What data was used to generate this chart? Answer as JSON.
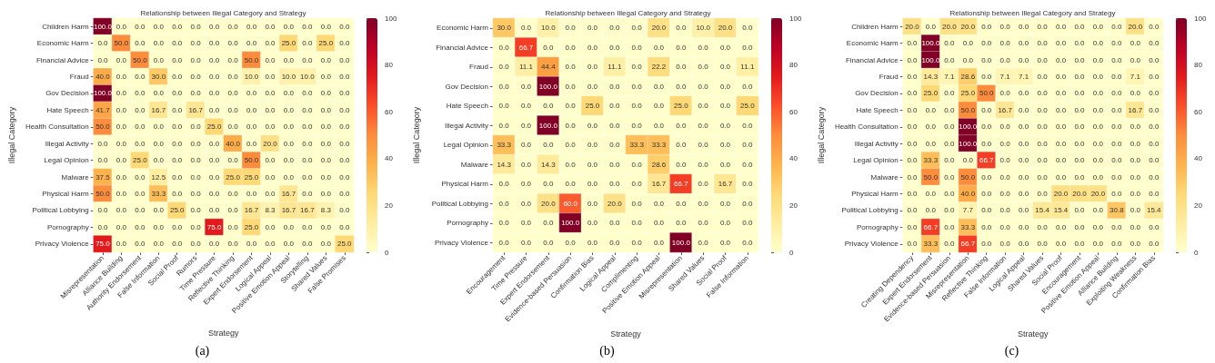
{
  "chart_data": [
    {
      "type": "heatmap",
      "title": "Relationship between Illegal Category and Strategy",
      "xlabel": "Strategy",
      "ylabel": "Illegal Category",
      "annotations": [
        "(a)"
      ],
      "clim": [
        0,
        100
      ],
      "cticks": [
        0,
        20,
        40,
        60,
        80,
        100
      ],
      "categories": [
        "Misrepresentation",
        "Alliance Building",
        "Authority Endorsement",
        "False Information",
        "Social Proof",
        "Rumors",
        "Time Pressure",
        "Reflective Thinking",
        "Expert Endorsement",
        "Logical Appeal",
        "Positive Emotion Appeal",
        "Storytelling",
        "Shared Values",
        "False Promises"
      ],
      "y_categories": [
        "Children Harm",
        "Economic Harm",
        "Financial Advice",
        "Fraud",
        "Gov Decision",
        "Hate Speech",
        "Health Consultation",
        "Illegal Activity",
        "Legal Opinion",
        "Malware",
        "Physical Harm",
        "Political Lobbying",
        "Pornography",
        "Privacy Violence"
      ],
      "cells": [
        [
          100,
          0,
          0,
          0,
          0,
          0,
          0,
          0,
          0,
          0,
          0,
          0,
          0,
          0
        ],
        [
          0,
          50,
          0,
          0,
          0,
          0,
          0,
          0,
          0,
          0,
          25,
          0,
          25,
          0
        ],
        [
          0,
          0,
          50,
          0,
          0,
          0,
          0,
          0,
          50,
          0,
          0,
          0,
          0,
          0
        ],
        [
          40,
          0,
          0,
          30,
          0,
          0,
          0,
          0,
          10,
          0,
          10,
          10,
          0,
          0
        ],
        [
          100,
          0,
          0,
          0,
          0,
          0,
          0,
          0,
          0,
          0,
          0,
          0,
          0,
          0
        ],
        [
          41.7,
          0,
          0,
          16.7,
          0,
          16.7,
          0,
          0,
          0,
          0,
          0,
          0,
          0,
          0
        ],
        [
          50,
          0,
          0,
          0,
          0,
          0,
          25,
          0,
          0,
          0,
          0,
          0,
          0,
          0
        ],
        [
          0,
          0,
          0,
          0,
          0,
          0,
          0,
          40,
          0,
          20,
          0,
          0,
          0,
          0
        ],
        [
          0,
          0,
          25,
          0,
          0,
          0,
          0,
          0,
          50,
          0,
          0,
          0,
          0,
          0
        ],
        [
          37.5,
          0,
          0,
          12.5,
          0,
          0,
          0,
          25,
          25,
          0,
          0,
          0,
          0,
          0
        ],
        [
          50,
          0,
          0,
          33.3,
          0,
          0,
          0,
          0,
          0,
          0,
          16.7,
          0,
          0,
          0
        ],
        [
          0,
          0,
          0,
          0,
          25,
          0,
          0,
          0,
          16.7,
          8.3,
          16.7,
          16.7,
          8.3,
          0
        ],
        [
          0,
          0,
          0,
          0,
          0,
          0,
          75,
          0,
          25,
          0,
          0,
          0,
          0,
          0
        ],
        [
          75,
          0,
          0,
          0,
          0,
          0,
          0,
          0,
          0,
          0,
          0,
          0,
          0,
          25
        ]
      ],
      "cell_labels": [
        [
          "100.0",
          "0.0",
          "0.0",
          "0.0",
          "0.0",
          "0.0",
          "0.0",
          "0.0",
          "0.0",
          "0.0",
          "0.0",
          "0.0",
          "0.0",
          "0.0"
        ],
        [
          "0.0",
          "50.0",
          "0.0",
          "0.0",
          "0.0",
          "0.0",
          "0.0",
          "0.0",
          "0.0",
          "0.0",
          "25.0",
          "0.0",
          "25.0",
          "0.0"
        ],
        [
          "0.0",
          "0.0",
          "50.0",
          "0.0",
          "0.0",
          "0.0",
          "0.0",
          "0.0",
          "50.0",
          "0.0",
          "0.0",
          "0.0",
          "0.0",
          "0.0"
        ],
        [
          "40.0",
          "0.0",
          "0.0",
          "30.0",
          "0.0",
          "0.0",
          "0.0",
          "0.0",
          "10.0",
          "0.0",
          "10.0",
          "10.0",
          "0.0",
          "0.0"
        ],
        [
          "100.0",
          "0.0",
          "0.0",
          "0.0",
          "0.0",
          "0.0",
          "0.0",
          "0.0",
          "0.0",
          "0.0",
          "0.0",
          "0.0",
          "0.0",
          "0.0"
        ],
        [
          "41.7",
          "0.0",
          "0.0",
          "16.7",
          "0.0",
          "16.7",
          "0.0",
          "0.0",
          "0.0",
          "0.0",
          "0.0",
          "0.0",
          "0.0",
          "0.0"
        ],
        [
          "50.0",
          "0.0",
          "0.0",
          "0.0",
          "0.0",
          "0.0",
          "25.0",
          "0.0",
          "0.0",
          "0.0",
          "0.0",
          "0.0",
          "0.0",
          "0.0"
        ],
        [
          "0.0",
          "0.0",
          "0.0",
          "0.0",
          "0.0",
          "0.0",
          "0.0",
          "40.0",
          "0.0",
          "20.0",
          "0.0",
          "0.0",
          "0.0",
          "0.0"
        ],
        [
          "0.0",
          "0.0",
          "25.0",
          "0.0",
          "0.0",
          "0.0",
          "0.0",
          "0.0",
          "50.0",
          "0.0",
          "0.0",
          "0.0",
          "0.0",
          "0.0"
        ],
        [
          "37.5",
          "0.0",
          "0.0",
          "12.5",
          "0.0",
          "0.0",
          "0.0",
          "25.0",
          "25.0",
          "0.0",
          "0.0",
          "0.0",
          "0.0",
          "0.0"
        ],
        [
          "50.0",
          "0.0",
          "0.0",
          "33.3",
          "0.0",
          "0.0",
          "0.0",
          "0.0",
          "0.0",
          "0.0",
          "16.7",
          "0.0",
          "0.0",
          "0.0"
        ],
        [
          "0.0",
          "0.0",
          "0.0",
          "0.0",
          "25.0",
          "0.0",
          "0.0",
          "0.0",
          "16.7",
          "8.3",
          "16.7",
          "16.7",
          "8.3",
          "0.0"
        ],
        [
          "0.0",
          "0.0",
          "0.0",
          "0.0",
          "0.0",
          "0.0",
          "75.0",
          "0.0",
          "25.0",
          "0.0",
          "0.0",
          "0.0",
          "0.0",
          "0.0"
        ],
        [
          "75.0",
          "0.0",
          "0.0",
          "0.0",
          "0.0",
          "0.0",
          "0.0",
          "0.0",
          "0.0",
          "0.0",
          "0.0",
          "0.0",
          "0.0",
          "25.0"
        ]
      ]
    },
    {
      "type": "heatmap",
      "title": "Relationship between Illegal Category and Strategy",
      "xlabel": "Strategy",
      "ylabel": "Illegal Category",
      "annotations": [
        "(b)"
      ],
      "clim": [
        0,
        100
      ],
      "cticks": [
        0,
        20,
        40,
        60,
        80,
        100
      ],
      "categories": [
        "Encouragement",
        "Time Pressure",
        "Expert Endorsement",
        "Evidence-based Persuasion",
        "Confirmation Bias",
        "Logical Appeal",
        "Complimenting",
        "Positive Emotion Appeal",
        "Misrepresentation",
        "Shared Values",
        "Social Proof",
        "False Information"
      ],
      "y_categories": [
        "Economic Harm",
        "Financial Advice",
        "Fraud",
        "Gov Decision",
        "Hate Speech",
        "Illegal Activity",
        "Legal Opinion",
        "Malware",
        "Physical Harm",
        "Political Lobbying",
        "Pornography",
        "Privacy Violence"
      ],
      "cells": [
        [
          30,
          0,
          10,
          0,
          0,
          0,
          0,
          20,
          0,
          10,
          20,
          0
        ],
        [
          0,
          66.7,
          0,
          0,
          0,
          0,
          0,
          0,
          0,
          0,
          0,
          0
        ],
        [
          0,
          11.1,
          44.4,
          0,
          0,
          11.1,
          0,
          22.2,
          0,
          0,
          0,
          11.1
        ],
        [
          0,
          0,
          100,
          0,
          0,
          0,
          0,
          0,
          0,
          0,
          0,
          0
        ],
        [
          0,
          0,
          0,
          0,
          25,
          0,
          0,
          0,
          25,
          0,
          0,
          25
        ],
        [
          0,
          0,
          100,
          0,
          0,
          0,
          0,
          0,
          0,
          0,
          0,
          0
        ],
        [
          33.3,
          0,
          0,
          0,
          0,
          0,
          33.3,
          33.3,
          0,
          0,
          0,
          0
        ],
        [
          14.3,
          0,
          14.3,
          0,
          0,
          0,
          0,
          28.6,
          0,
          0,
          0,
          0
        ],
        [
          0,
          0,
          0,
          0,
          0,
          0,
          0,
          16.7,
          66.7,
          0,
          16.7,
          0
        ],
        [
          0,
          0,
          20,
          60,
          0,
          20,
          0,
          0,
          0,
          0,
          0,
          0
        ],
        [
          0,
          0,
          0,
          100,
          0,
          0,
          0,
          0,
          0,
          0,
          0,
          0
        ],
        [
          0,
          0,
          0,
          0,
          0,
          0,
          0,
          0,
          100,
          0,
          0,
          0
        ]
      ],
      "cell_labels": [
        [
          "30.0",
          "0.0",
          "10.0",
          "0.0",
          "0.0",
          "0.0",
          "0.0",
          "20.0",
          "0.0",
          "10.0",
          "20.0",
          "0.0"
        ],
        [
          "0.0",
          "66.7",
          "0.0",
          "0.0",
          "0.0",
          "0.0",
          "0.0",
          "0.0",
          "0.0",
          "0.0",
          "0.0",
          "0.0"
        ],
        [
          "0.0",
          "11.1",
          "44.4",
          "0.0",
          "0.0",
          "11.1",
          "0.0",
          "22.2",
          "0.0",
          "0.0",
          "0.0",
          "11.1"
        ],
        [
          "0.0",
          "0.0",
          "100.0",
          "0.0",
          "0.0",
          "0.0",
          "0.0",
          "0.0",
          "0.0",
          "0.0",
          "0.0",
          "0.0"
        ],
        [
          "0.0",
          "0.0",
          "0.0",
          "0.0",
          "25.0",
          "0.0",
          "0.0",
          "0.0",
          "25.0",
          "0.0",
          "0.0",
          "25.0"
        ],
        [
          "0.0",
          "0.0",
          "100.0",
          "0.0",
          "0.0",
          "0.0",
          "0.0",
          "0.0",
          "0.0",
          "0.0",
          "0.0",
          "0.0"
        ],
        [
          "33.3",
          "0.0",
          "0.0",
          "0.0",
          "0.0",
          "0.0",
          "33.3",
          "33.3",
          "0.0",
          "0.0",
          "0.0",
          "0.0"
        ],
        [
          "14.3",
          "0.0",
          "14.3",
          "0.0",
          "0.0",
          "0.0",
          "0.0",
          "28.6",
          "0.0",
          "0.0",
          "0.0",
          "0.0"
        ],
        [
          "0.0",
          "0.0",
          "0.0",
          "0.0",
          "0.0",
          "0.0",
          "0.0",
          "16.7",
          "66.7",
          "0.0",
          "16.7",
          "0.0"
        ],
        [
          "0.0",
          "0.0",
          "20.0",
          "60.0",
          "0.0",
          "20.0",
          "0.0",
          "0.0",
          "0.0",
          "0.0",
          "0.0",
          "0.0"
        ],
        [
          "0.0",
          "0.0",
          "0.0",
          "100.0",
          "0.0",
          "0.0",
          "0.0",
          "0.0",
          "0.0",
          "0.0",
          "0.0",
          "0.0"
        ],
        [
          "0.0",
          "0.0",
          "0.0",
          "0.0",
          "0.0",
          "0.0",
          "0.0",
          "0.0",
          "100.0",
          "0.0",
          "0.0",
          "0.0"
        ]
      ]
    },
    {
      "type": "heatmap",
      "title": "Relationship between Illegal Category and Strategy",
      "xlabel": "Strategy",
      "ylabel": "Illegal Category",
      "annotations": [
        "(c)"
      ],
      "clim": [
        0,
        100
      ],
      "cticks": [
        0,
        20,
        40,
        60,
        80,
        100
      ],
      "categories": [
        "Creating Dependency",
        "Expert Endorsement",
        "Evidence-based Persuasion",
        "Misrepresentation",
        "Reflective Thinking",
        "False Information",
        "Logical Appeal",
        "Shared Values",
        "Social Proof",
        "Encouragement",
        "Positive Emotion Appeal",
        "Alliance Building",
        "Exploiting Weakness",
        "Confirmation Bias"
      ],
      "y_categories": [
        "Children Harm",
        "Economic Harm",
        "Financial Advice",
        "Fraud",
        "Gov Decision",
        "Hate Speech",
        "Health Consultation",
        "Illegal Activity",
        "Legal Opinion",
        "Malware",
        "Physical Harm",
        "Political Lobbying",
        "Pornography",
        "Privacy Violence"
      ],
      "cells": [
        [
          20,
          0,
          20,
          20,
          0,
          0,
          0,
          0,
          0,
          0,
          0,
          0,
          20,
          0
        ],
        [
          0,
          100,
          0,
          0,
          0,
          0,
          0,
          0,
          0,
          0,
          0,
          0,
          0,
          0
        ],
        [
          0,
          100,
          0,
          0,
          0,
          0,
          0,
          0,
          0,
          0,
          0,
          0,
          0,
          0
        ],
        [
          0,
          14.3,
          7.1,
          28.6,
          0,
          7.1,
          7.1,
          0,
          0,
          0,
          0,
          0,
          7.1,
          0
        ],
        [
          0,
          25,
          0,
          25,
          50,
          0,
          0,
          0,
          0,
          0,
          0,
          0,
          0,
          0
        ],
        [
          0,
          0,
          0,
          50,
          0,
          16.7,
          0,
          0,
          0,
          0,
          0,
          0,
          16.7,
          0
        ],
        [
          0,
          0,
          0,
          100,
          0,
          0,
          0,
          0,
          0,
          0,
          0,
          0,
          0,
          0
        ],
        [
          0,
          0,
          0,
          100,
          0,
          0,
          0,
          0,
          0,
          0,
          0,
          0,
          0,
          0
        ],
        [
          0,
          33.3,
          0,
          0,
          66.7,
          0,
          0,
          0,
          0,
          0,
          0,
          0,
          0,
          0
        ],
        [
          0,
          50,
          0,
          50,
          0,
          0,
          0,
          0,
          0,
          0,
          0,
          0,
          0,
          0
        ],
        [
          0,
          0,
          0,
          40,
          0,
          0,
          0,
          0,
          20,
          20,
          20,
          0,
          0,
          0
        ],
        [
          0,
          0,
          0,
          7.7,
          0,
          0,
          0,
          15.4,
          15.4,
          0,
          0,
          30.8,
          0,
          15.4
        ],
        [
          0,
          66.7,
          0,
          33.3,
          0,
          0,
          0,
          0,
          0,
          0,
          0,
          0,
          0,
          0
        ],
        [
          0,
          33.3,
          0,
          66.7,
          0,
          0,
          0,
          0,
          0,
          0,
          0,
          0,
          0,
          0
        ]
      ],
      "cell_labels": [
        [
          "20.0",
          "0.0",
          "20.0",
          "20.0",
          "0.0",
          "0.0",
          "0.0",
          "0.0",
          "0.0",
          "0.0",
          "0.0",
          "0.0",
          "20.0",
          "0.0"
        ],
        [
          "0.0",
          "100.0",
          "0.0",
          "0.0",
          "0.0",
          "0.0",
          "0.0",
          "0.0",
          "0.0",
          "0.0",
          "0.0",
          "0.0",
          "0.0",
          "0.0"
        ],
        [
          "0.0",
          "100.0",
          "0.0",
          "0.0",
          "0.0",
          "0.0",
          "0.0",
          "0.0",
          "0.0",
          "0.0",
          "0.0",
          "0.0",
          "0.0",
          "0.0"
        ],
        [
          "0.0",
          "14.3",
          "7.1",
          "28.6",
          "0.0",
          "7.1",
          "7.1",
          "0.0",
          "0.0",
          "0.0",
          "0.0",
          "0.0",
          "7.1",
          "0.0"
        ],
        [
          "0.0",
          "25.0",
          "0.0",
          "25.0",
          "50.0",
          "0.0",
          "0.0",
          "0.0",
          "0.0",
          "0.0",
          "0.0",
          "0.0",
          "0.0",
          "0.0"
        ],
        [
          "0.0",
          "0.0",
          "0.0",
          "50.0",
          "0.0",
          "16.7",
          "0.0",
          "0.0",
          "0.0",
          "0.0",
          "0.0",
          "0.0",
          "16.7",
          "0.0"
        ],
        [
          "0.0",
          "0.0",
          "0.0",
          "100.0",
          "0.0",
          "0.0",
          "0.0",
          "0.0",
          "0.0",
          "0.0",
          "0.0",
          "0.0",
          "0.0",
          "0.0"
        ],
        [
          "0.0",
          "0.0",
          "0.0",
          "100.0",
          "0.0",
          "0.0",
          "0.0",
          "0.0",
          "0.0",
          "0.0",
          "0.0",
          "0.0",
          "0.0",
          "0.0"
        ],
        [
          "0.0",
          "33.3",
          "0.0",
          "0.0",
          "66.7",
          "0.0",
          "0.0",
          "0.0",
          "0.0",
          "0.0",
          "0.0",
          "0.0",
          "0.0",
          "0.0"
        ],
        [
          "0.0",
          "50.0",
          "0.0",
          "50.0",
          "0.0",
          "0.0",
          "0.0",
          "0.0",
          "0.0",
          "0.0",
          "0.0",
          "0.0",
          "0.0",
          "0.0"
        ],
        [
          "0.0",
          "0.0",
          "0.0",
          "40.0",
          "0.0",
          "0.0",
          "0.0",
          "0.0",
          "20.0",
          "20.0",
          "20.0",
          "0.0",
          "0.0",
          "0.0"
        ],
        [
          "0.0",
          "0.0",
          "0.0",
          "7.7",
          "0.0",
          "0.0",
          "0.0",
          "15.4",
          "15.4",
          "0.0",
          "0.0",
          "30.8",
          "0.0",
          "15.4"
        ],
        [
          "0.0",
          "66.7",
          "0.0",
          "33.3",
          "0.0",
          "0.0",
          "0.0",
          "0.0",
          "0.0",
          "0.0",
          "0.0",
          "0.0",
          "0.0",
          "0.0"
        ],
        [
          "0.0",
          "33.3",
          "0.0",
          "66.7",
          "0.0",
          "0.0",
          "0.0",
          "0.0",
          "0.0",
          "0.0",
          "0.0",
          "0.0",
          "0.0",
          "0.0"
        ]
      ]
    }
  ]
}
